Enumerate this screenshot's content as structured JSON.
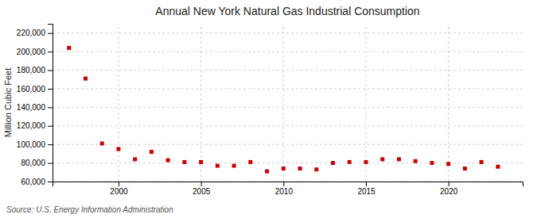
{
  "chart_data": {
    "type": "scatter",
    "title": "Annual New York Natural Gas Industrial Consumption",
    "ylabel": "Million Cubic Feet",
    "source": "Source: U.S. Energy Information Administration",
    "x": [
      1997,
      1998,
      1999,
      2000,
      2001,
      2002,
      2003,
      2004,
      2005,
      2006,
      2007,
      2008,
      2009,
      2010,
      2011,
      2012,
      2013,
      2014,
      2015,
      2016,
      2017,
      2018,
      2019,
      2020,
      2021,
      2022,
      2023
    ],
    "values": [
      204000,
      171000,
      101000,
      95000,
      84000,
      92000,
      83000,
      81000,
      81000,
      77000,
      77000,
      81000,
      71000,
      74000,
      74000,
      73000,
      80000,
      81000,
      81000,
      84000,
      84000,
      82000,
      80000,
      79000,
      74000,
      81000,
      76000
    ],
    "color": "#cc0000",
    "marker": "square",
    "xlim": [
      1996.0,
      2024.5
    ],
    "xticks": [
      2000,
      2005,
      2010,
      2015,
      2020
    ],
    "ylim": [
      60000,
      230000
    ],
    "yticks": [
      {
        "value": 60000,
        "label": "60,000"
      },
      {
        "value": 80000,
        "label": "80,000"
      },
      {
        "value": 100000,
        "label": "100,000"
      },
      {
        "value": 120000,
        "label": "120,000"
      },
      {
        "value": 140000,
        "label": "140,000"
      },
      {
        "value": 160000,
        "label": "160,000"
      },
      {
        "value": 180000,
        "label": "180,000"
      },
      {
        "value": 200000,
        "label": "200,000"
      },
      {
        "value": 220000,
        "label": "220,000"
      }
    ],
    "grid": true
  }
}
